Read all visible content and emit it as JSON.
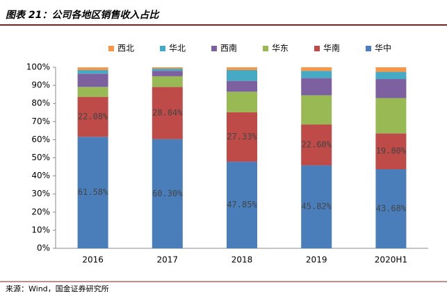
{
  "chart_data": {
    "type": "stacked_bar",
    "title": "图表 21：公司各地区销售收入占比",
    "source": "来源：Wind，国金证券研究所",
    "categories": [
      "2016",
      "2017",
      "2018",
      "2019",
      "2020H1"
    ],
    "series": [
      {
        "name": "华中",
        "color": "#4a7ebb",
        "values": [
          61.58,
          60.3,
          47.85,
          45.82,
          43.68
        ],
        "value_labels": [
          "61.58%",
          "60.30%",
          "47.85%",
          "45.82%",
          "43.68%"
        ]
      },
      {
        "name": "华南",
        "color": "#be4b48",
        "values": [
          22.08,
          28.84,
          27.33,
          22.6,
          19.8
        ],
        "value_labels": [
          "22.08%",
          "28.84%",
          "27.33%",
          "22.60%",
          "19.80%"
        ]
      },
      {
        "name": "华东",
        "color": "#98b954",
        "values": [
          5.5,
          5.9,
          11.3,
          16.1,
          19.5
        ]
      },
      {
        "name": "西南",
        "color": "#7d60a0",
        "values": [
          7.3,
          3.0,
          6.0,
          9.5,
          10.5
        ]
      },
      {
        "name": "华北",
        "color": "#46aac5",
        "values": [
          2.0,
          1.2,
          6.0,
          4.0,
          4.0
        ]
      },
      {
        "name": "西北",
        "color": "#f79646",
        "values": [
          1.5,
          0.76,
          1.5,
          1.98,
          2.5
        ]
      }
    ],
    "ylim": [
      0,
      100
    ],
    "yticks": [
      {
        "value": 0,
        "label": "0%"
      },
      {
        "value": 10,
        "label": "10%"
      },
      {
        "value": 20,
        "label": "20%"
      },
      {
        "value": 30,
        "label": "30%"
      },
      {
        "value": 40,
        "label": "40%"
      },
      {
        "value": 50,
        "label": "50%"
      },
      {
        "value": 60,
        "label": "60%"
      },
      {
        "value": 70,
        "label": "70%"
      },
      {
        "value": 80,
        "label": "80%"
      },
      {
        "value": 90,
        "label": "90%"
      },
      {
        "value": 100,
        "label": "100%"
      }
    ]
  }
}
